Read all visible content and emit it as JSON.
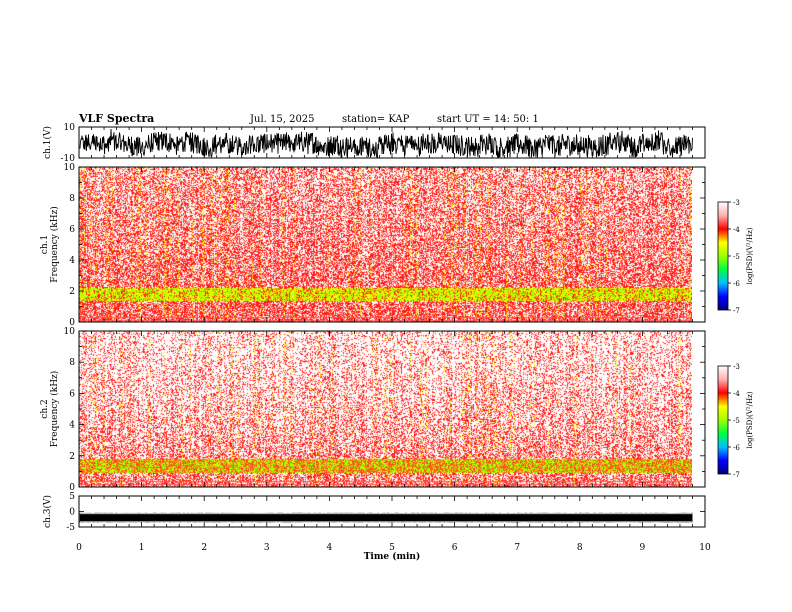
{
  "header": {
    "title": "VLF Spectra",
    "date": "Jul. 15, 2025",
    "station": "station= KAP",
    "start": "start UT = 14: 50: 1"
  },
  "colors": {
    "waveform": "#000000",
    "colormap": [
      "#000080",
      "#0000ff",
      "#00c0ff",
      "#00ff40",
      "#a0ff00",
      "#ffff00",
      "#ff0000",
      "#ffb0b0",
      "#ffffff"
    ]
  },
  "chart_data": [
    {
      "type": "line",
      "name": "ch1-waveform",
      "ylabel": "ch.1(V)",
      "ylim": [
        -10,
        10
      ],
      "yticks": [
        "10",
        "-10"
      ],
      "xlim": [
        0,
        10
      ],
      "description_series": "broadband voltage trace fluctuating roughly between -9 and 7 V across 0–9.8 min"
    },
    {
      "type": "heatmap",
      "name": "ch1-spectrogram",
      "ylabel_top": "ch.1",
      "ylabel": "Frequency (kHz)",
      "ylim": [
        0,
        10
      ],
      "yticks": [
        "0",
        "2",
        "4",
        "6",
        "8",
        "10"
      ],
      "xlim": [
        0,
        10
      ],
      "data_xmax": 9.8,
      "colorbar": {
        "label": "log(PSD)(V²/Hz)",
        "range": [
          -7,
          -3
        ],
        "ticks": [
          "-3",
          "-4",
          "-5",
          "-6",
          "-7"
        ]
      },
      "band_kHz": [
        1.4,
        2.2
      ]
    },
    {
      "type": "heatmap",
      "name": "ch2-spectrogram",
      "ylabel_top": "ch.2",
      "ylabel": "Frequency (kHz)",
      "ylim": [
        0,
        10
      ],
      "yticks": [
        "0",
        "2",
        "4",
        "6",
        "8",
        "10"
      ],
      "xlim": [
        0,
        10
      ],
      "data_xmax": 9.8,
      "colorbar": {
        "label": "log(PSD)(V²/Hz)",
        "range": [
          -7,
          -3
        ],
        "ticks": [
          "-3",
          "-4",
          "-5",
          "-6",
          "-7"
        ]
      },
      "band_kHz": [
        0.9,
        1.8
      ]
    },
    {
      "type": "line",
      "name": "ch3-waveform",
      "ylabel": "ch.3(V)",
      "ylim": [
        -5,
        5
      ],
      "yticks": [
        "5",
        "0",
        "-5"
      ],
      "xlim": [
        0,
        10
      ],
      "level_V": -2,
      "xlabel": "Time (min)",
      "xticks": [
        "0",
        "1",
        "2",
        "3",
        "4",
        "5",
        "6",
        "7",
        "8",
        "9",
        "10"
      ]
    }
  ]
}
